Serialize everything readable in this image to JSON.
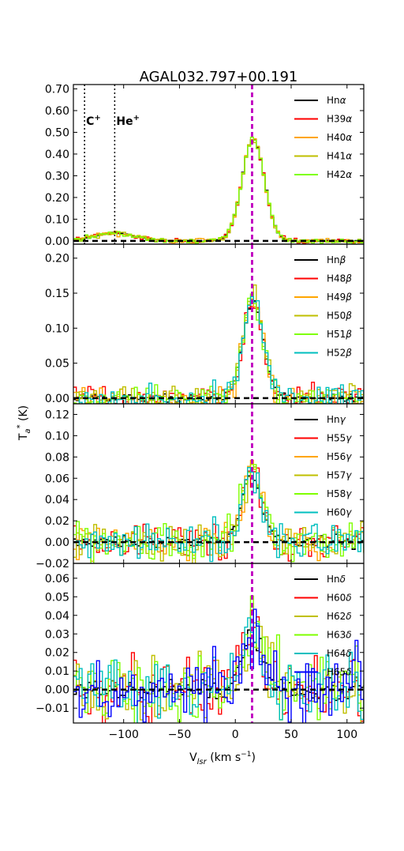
{
  "chart_data": {
    "type": "line",
    "title": "AGAL032.797+00.191",
    "xlabel": "V",
    "xlabel_sub": "lsr",
    "xlabel_unit": " (km s",
    "xlabel_exp": "−1",
    "xlabel_close": ")",
    "ylabel": "T",
    "ylabel_sub": "a",
    "ylabel_exp": "*",
    "ylabel_unit": " (K)",
    "xlim": [
      -145,
      115
    ],
    "xticks": [
      "−100",
      "−50",
      "0",
      "50",
      "100"
    ],
    "xtick_values": [
      -100,
      -50,
      0,
      50,
      100
    ],
    "vline_vlsr": 15,
    "vline_color": "#bf00bf",
    "panels": [
      {
        "ylim": [
          -0.015,
          0.72
        ],
        "yticks": [
          "0.00",
          "0.10",
          "0.20",
          "0.30",
          "0.40",
          "0.50",
          "0.60",
          "0.70"
        ],
        "ytick_values": [
          0.0,
          0.1,
          0.2,
          0.3,
          0.4,
          0.5,
          0.6,
          0.7
        ],
        "profile": {
          "amp": 0.47,
          "center": 16,
          "sigma": 10,
          "noise": 0.008,
          "bump_amp": 0.035,
          "bump_center": -108,
          "bump_sigma": 18
        },
        "vlines": [
          {
            "x": -135,
            "label": "C",
            "sup": "+"
          },
          {
            "x": -108,
            "label": "He",
            "sup": "+"
          }
        ],
        "series": [
          {
            "name": "Hn",
            "greek": "α",
            "color": "#000000"
          },
          {
            "name": "H39",
            "greek": "α",
            "color": "#ff0000"
          },
          {
            "name": "H40",
            "greek": "α",
            "color": "#ffa500"
          },
          {
            "name": "H41",
            "greek": "α",
            "color": "#bfbf00"
          },
          {
            "name": "H42",
            "greek": "α",
            "color": "#7fff00"
          }
        ]
      },
      {
        "ylim": [
          -0.008,
          0.22
        ],
        "yticks": [
          "0.00",
          "0.05",
          "0.10",
          "0.15",
          "0.20"
        ],
        "ytick_values": [
          0.0,
          0.05,
          0.1,
          0.15,
          0.2
        ],
        "profile": {
          "amp": 0.14,
          "center": 16,
          "sigma": 9,
          "noise": 0.012,
          "bump_amp": 0,
          "bump_center": 0,
          "bump_sigma": 1
        },
        "series": [
          {
            "name": "Hn",
            "greek": "β",
            "color": "#000000"
          },
          {
            "name": "H48",
            "greek": "β",
            "color": "#ff0000"
          },
          {
            "name": "H49",
            "greek": "β",
            "color": "#ffa500"
          },
          {
            "name": "H50",
            "greek": "β",
            "color": "#bfbf00"
          },
          {
            "name": "H51",
            "greek": "β",
            "color": "#7fff00"
          },
          {
            "name": "H52",
            "greek": "β",
            "color": "#00bfbf"
          }
        ]
      },
      {
        "ylim": [
          -0.02,
          0.13
        ],
        "yticks": [
          "−0.02",
          "0.00",
          "0.02",
          "0.04",
          "0.06",
          "0.08",
          "0.10",
          "0.12"
        ],
        "ytick_values": [
          -0.02,
          0.0,
          0.02,
          0.04,
          0.06,
          0.08,
          0.1,
          0.12
        ],
        "profile": {
          "amp": 0.065,
          "center": 15,
          "sigma": 9,
          "noise": 0.012,
          "bump_amp": 0,
          "bump_center": 0,
          "bump_sigma": 1
        },
        "series": [
          {
            "name": "Hn",
            "greek": "γ",
            "color": "#000000"
          },
          {
            "name": "H55",
            "greek": "γ",
            "color": "#ff0000"
          },
          {
            "name": "H56",
            "greek": "γ",
            "color": "#ffa500"
          },
          {
            "name": "H57",
            "greek": "γ",
            "color": "#bfbf00"
          },
          {
            "name": "H58",
            "greek": "γ",
            "color": "#7fff00"
          },
          {
            "name": "H60",
            "greek": "γ",
            "color": "#00bfbf"
          }
        ]
      },
      {
        "ylim": [
          -0.018,
          0.068
        ],
        "yticks": [
          "−0.01",
          "0.00",
          "0.01",
          "0.02",
          "0.03",
          "0.04",
          "0.05",
          "0.06"
        ],
        "ytick_values": [
          -0.01,
          0.0,
          0.01,
          0.02,
          0.03,
          0.04,
          0.05,
          0.06
        ],
        "profile": {
          "amp": 0.032,
          "center": 15,
          "sigma": 9,
          "noise": 0.013,
          "bump_amp": 0,
          "bump_center": 0,
          "bump_sigma": 1
        },
        "series": [
          {
            "name": "Hn",
            "greek": "δ",
            "color": "#000000"
          },
          {
            "name": "H60",
            "greek": "δ",
            "color": "#ff0000"
          },
          {
            "name": "H62",
            "greek": "δ",
            "color": "#bfbf00"
          },
          {
            "name": "H63",
            "greek": "δ",
            "color": "#7fff00"
          },
          {
            "name": "H64",
            "greek": "δ",
            "color": "#00bfbf"
          },
          {
            "name": "H65",
            "greek": "δ",
            "color": "#0000ff"
          }
        ]
      }
    ]
  }
}
